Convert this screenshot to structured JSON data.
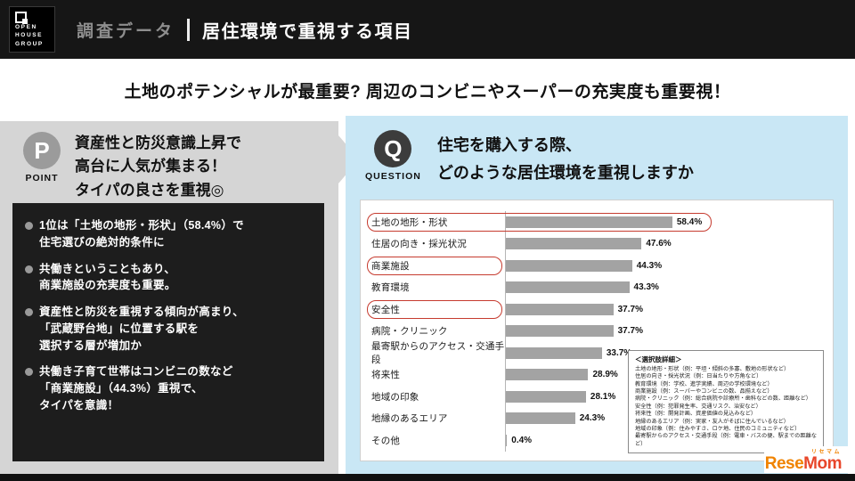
{
  "header": {
    "logo": {
      "lines": "OPEN\nHOUSE\nGROUP"
    },
    "category": "調査データ",
    "title": "居住環境で重視する項目"
  },
  "headline": "土地のポテンシャルが最重要? 周辺のコンビニやスーパーの充実度も重要視！",
  "point": {
    "badge": "P",
    "badge_label": "POINT",
    "text": "資産性と防災意識上昇で\n高台に人気が集まる！\nタイパの良さを重視◎",
    "bullets": [
      "1位は「土地の地形・形状」（58.4%）で\n住宅選びの絶対的条件に",
      "共働きということもあり、\n商業施設の充実度も重要。",
      "資産性と防災を重視する傾向が高まり、\n「武蔵野台地」に位置する駅を\n選択する層が増加か",
      "共働き子育て世帯はコンビニの数など\n「商業施設」（44.3%）重視で、\nタイパを意識！"
    ]
  },
  "question": {
    "badge": "Q",
    "badge_label": "QUESTION",
    "text": "住宅を購入する際、\nどのような居住環境を重視しますか"
  },
  "chart_data": {
    "type": "bar",
    "orientation": "horizontal",
    "xlim": [
      0,
      65
    ],
    "grid": false,
    "bar_color": "#a3a3a3",
    "highlight_color": "#c63b2f",
    "rows": [
      {
        "label": "土地の地形・形状",
        "value": 58.4,
        "display": "58.4%",
        "highlight": "row"
      },
      {
        "label": "住居の向き・採光状況",
        "value": 47.6,
        "display": "47.6%",
        "highlight": "none"
      },
      {
        "label": "商業施設",
        "value": 44.3,
        "display": "44.3%",
        "highlight": "label"
      },
      {
        "label": "教育環境",
        "value": 43.3,
        "display": "43.3%",
        "highlight": "none"
      },
      {
        "label": "安全性",
        "value": 37.7,
        "display": "37.7%",
        "highlight": "label"
      },
      {
        "label": "病院・クリニック",
        "value": 37.7,
        "display": "37.7%",
        "highlight": "none"
      },
      {
        "label": "最寄駅からのアクセス・交通手段",
        "value": 33.7,
        "display": "33.7%",
        "highlight": "none"
      },
      {
        "label": "将来性",
        "value": 28.9,
        "display": "28.9%",
        "highlight": "none"
      },
      {
        "label": "地域の印象",
        "value": 28.1,
        "display": "28.1%",
        "highlight": "none"
      },
      {
        "label": "地縁のあるエリア",
        "value": 24.3,
        "display": "24.3%",
        "highlight": "none"
      },
      {
        "label": "その他",
        "value": 0.4,
        "display": "0.4%",
        "highlight": "none"
      }
    ]
  },
  "note_box": {
    "title": "＜選択肢詳細＞",
    "lines": [
      "土地の地形・形状（例：平坦・傾斜の多寡、敷地の形状など）",
      "住居の向き・採光状況（例：日当たりや方角など）",
      "教育環境（例：学校、進学実績、周辺の学校環境など）",
      "商業施設（例：スーパーやコンビニの数、品揃えなど）",
      "病院・クリニック（例：総合病院や診療所・歯科などの数、距離など）",
      "安全性（例：犯罪発生率、交通リスク、治安など）",
      "将来性（例：開発計画、資産価値の見込みなど）",
      "地縁のあるエリア（例：実家・友人がそばに住んでいるなど）",
      "地域の印象（例：住みやすさ、ロケ地、住民のコミュニティなど）",
      "最寄駅からのアクセス・交通手段（例：電車・バスの便、駅までの距離など）"
    ]
  },
  "credit": {
    "kana": "リセマム",
    "name_left": "Rese",
    "name_right": "Mom"
  }
}
